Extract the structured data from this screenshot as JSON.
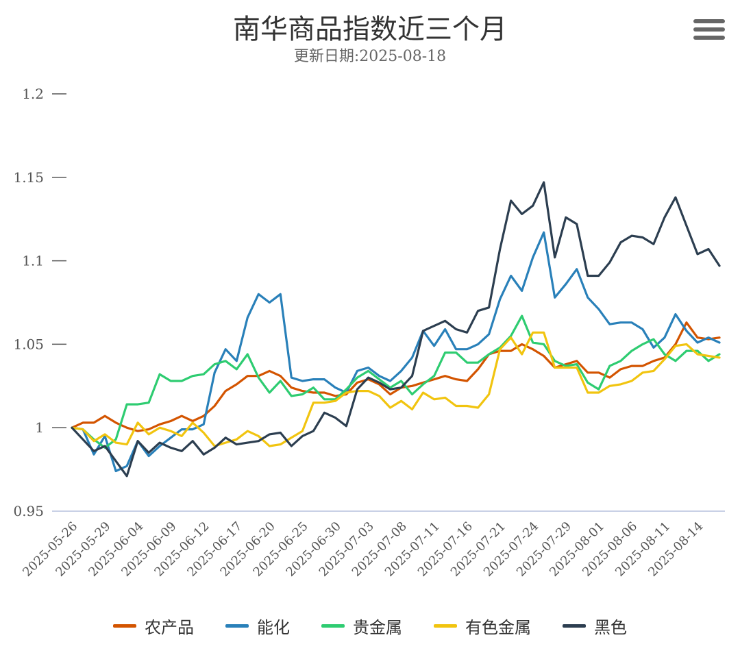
{
  "chart_data": {
    "type": "line",
    "title": "南华商品指数近三个月",
    "subtitle": "更新日期:2025-08-18",
    "ylim": [
      0.95,
      1.2
    ],
    "yticks": [
      "0.95",
      "1",
      "1.05",
      "1.1",
      "1.15",
      "1.2"
    ],
    "xtick_labels": [
      "2025-05-26",
      "2025-05-29",
      "2025-06-04",
      "2025-06-09",
      "2025-06-12",
      "2025-06-17",
      "2025-06-20",
      "2025-06-25",
      "2025-06-30",
      "2025-07-03",
      "2025-07-08",
      "2025-07-11",
      "2025-07-16",
      "2025-07-21",
      "2025-07-24",
      "2025-07-29",
      "2025-08-01",
      "2025-08-06",
      "2025-08-11",
      "2025-08-14"
    ],
    "x": [
      "2025-05-26",
      "2025-05-27",
      "2025-05-28",
      "2025-05-29",
      "2025-05-30",
      "2025-06-03",
      "2025-06-04",
      "2025-06-05",
      "2025-06-06",
      "2025-06-09",
      "2025-06-10",
      "2025-06-11",
      "2025-06-12",
      "2025-06-13",
      "2025-06-16",
      "2025-06-17",
      "2025-06-18",
      "2025-06-19",
      "2025-06-20",
      "2025-06-23",
      "2025-06-24",
      "2025-06-25",
      "2025-06-26",
      "2025-06-27",
      "2025-06-30",
      "2025-07-01",
      "2025-07-02",
      "2025-07-03",
      "2025-07-04",
      "2025-07-07",
      "2025-07-08",
      "2025-07-09",
      "2025-07-10",
      "2025-07-11",
      "2025-07-14",
      "2025-07-15",
      "2025-07-16",
      "2025-07-17",
      "2025-07-18",
      "2025-07-21",
      "2025-07-22",
      "2025-07-23",
      "2025-07-24",
      "2025-07-25",
      "2025-07-28",
      "2025-07-29",
      "2025-07-30",
      "2025-07-31",
      "2025-08-01",
      "2025-08-04",
      "2025-08-05",
      "2025-08-06",
      "2025-08-07",
      "2025-08-08",
      "2025-08-11",
      "2025-08-12",
      "2025-08-13",
      "2025-08-14",
      "2025-08-15",
      "2025-08-18"
    ],
    "series": [
      {
        "name": "农产品",
        "color": "#d35400",
        "values": [
          1.0,
          1.003,
          1.003,
          1.007,
          1.003,
          1.0,
          0.998,
          0.999,
          1.002,
          1.004,
          1.007,
          1.004,
          1.007,
          1.013,
          1.022,
          1.026,
          1.031,
          1.031,
          1.034,
          1.031,
          1.024,
          1.022,
          1.021,
          1.021,
          1.019,
          1.02,
          1.027,
          1.029,
          1.026,
          1.02,
          1.024,
          1.025,
          1.027,
          1.029,
          1.031,
          1.029,
          1.028,
          1.035,
          1.044,
          1.046,
          1.046,
          1.05,
          1.047,
          1.043,
          1.036,
          1.038,
          1.04,
          1.033,
          1.033,
          1.03,
          1.035,
          1.037,
          1.037,
          1.04,
          1.042,
          1.05,
          1.063,
          1.054,
          1.053,
          1.054
        ]
      },
      {
        "name": "能化",
        "color": "#2980b9",
        "values": [
          1.0,
          0.999,
          0.984,
          0.995,
          0.974,
          0.977,
          0.992,
          0.983,
          0.989,
          0.994,
          0.999,
          0.999,
          1.002,
          1.033,
          1.047,
          1.04,
          1.066,
          1.08,
          1.075,
          1.08,
          1.03,
          1.028,
          1.029,
          1.029,
          1.024,
          1.021,
          1.034,
          1.036,
          1.031,
          1.028,
          1.034,
          1.042,
          1.058,
          1.049,
          1.059,
          1.047,
          1.047,
          1.05,
          1.056,
          1.077,
          1.091,
          1.082,
          1.102,
          1.117,
          1.078,
          1.086,
          1.095,
          1.078,
          1.071,
          1.062,
          1.063,
          1.063,
          1.059,
          1.048,
          1.054,
          1.068,
          1.058,
          1.051,
          1.054,
          1.051
        ]
      },
      {
        "name": "贵金属",
        "color": "#2ecc71",
        "values": [
          1.0,
          0.999,
          0.993,
          0.988,
          0.993,
          1.014,
          1.014,
          1.015,
          1.032,
          1.028,
          1.028,
          1.031,
          1.032,
          1.038,
          1.04,
          1.035,
          1.044,
          1.03,
          1.021,
          1.028,
          1.019,
          1.02,
          1.024,
          1.017,
          1.017,
          1.023,
          1.03,
          1.034,
          1.029,
          1.024,
          1.028,
          1.02,
          1.026,
          1.031,
          1.045,
          1.045,
          1.039,
          1.039,
          1.044,
          1.048,
          1.055,
          1.067,
          1.051,
          1.05,
          1.04,
          1.037,
          1.038,
          1.027,
          1.023,
          1.037,
          1.04,
          1.046,
          1.05,
          1.053,
          1.044,
          1.04,
          1.046,
          1.046,
          1.04,
          1.044
        ]
      },
      {
        "name": "有色金属",
        "color": "#f1c40f",
        "values": [
          1.0,
          0.999,
          0.992,
          0.996,
          0.991,
          0.99,
          1.003,
          0.996,
          1.0,
          0.998,
          0.995,
          1.003,
          0.997,
          0.989,
          0.991,
          0.993,
          0.998,
          0.995,
          0.989,
          0.99,
          0.994,
          0.998,
          1.015,
          1.015,
          1.016,
          1.021,
          1.022,
          1.022,
          1.019,
          1.012,
          1.016,
          1.011,
          1.021,
          1.017,
          1.018,
          1.013,
          1.013,
          1.012,
          1.02,
          1.047,
          1.054,
          1.044,
          1.057,
          1.057,
          1.036,
          1.036,
          1.036,
          1.021,
          1.021,
          1.025,
          1.026,
          1.028,
          1.033,
          1.034,
          1.041,
          1.049,
          1.05,
          1.044,
          1.043,
          1.042
        ]
      },
      {
        "name": "黑色",
        "color": "#2c3e50",
        "values": [
          1.0,
          0.993,
          0.986,
          0.989,
          0.98,
          0.971,
          0.992,
          0.985,
          0.991,
          0.988,
          0.986,
          0.992,
          0.984,
          0.988,
          0.994,
          0.99,
          0.991,
          0.992,
          0.996,
          0.997,
          0.989,
          0.995,
          0.998,
          1.009,
          1.006,
          1.001,
          1.023,
          1.03,
          1.027,
          1.023,
          1.024,
          1.031,
          1.058,
          1.061,
          1.064,
          1.059,
          1.057,
          1.07,
          1.072,
          1.107,
          1.136,
          1.128,
          1.133,
          1.147,
          1.102,
          1.126,
          1.122,
          1.091,
          1.091,
          1.099,
          1.111,
          1.115,
          1.114,
          1.11,
          1.126,
          1.138,
          1.121,
          1.104,
          1.107,
          1.097
        ]
      }
    ]
  },
  "menu": {
    "icon": "hamburger-menu-icon"
  }
}
